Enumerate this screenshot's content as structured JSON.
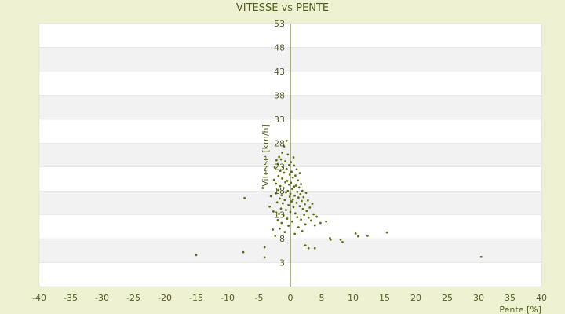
{
  "chart_data": {
    "type": "scatter",
    "title": "VITESSE vs PENTE",
    "xlabel": "Pente [%]",
    "ylabel": "Vitesse [km/h]",
    "xlim": [
      -40,
      40
    ],
    "ylim": [
      -2,
      53
    ],
    "x_ticks": [
      -40,
      -35,
      -30,
      -25,
      -20,
      -15,
      -10,
      -5,
      0,
      5,
      10,
      15,
      20,
      25,
      30,
      35,
      40
    ],
    "y_ticks": [
      3,
      8,
      13,
      18,
      23,
      28,
      33,
      38,
      43,
      48,
      53
    ],
    "grid": "horizontal bands",
    "marker_color": "#5e6e12",
    "points": [
      [
        -15,
        4.6
      ],
      [
        -7.5,
        5.2
      ],
      [
        -7.3,
        16.5
      ],
      [
        -4.4,
        18.6
      ],
      [
        -4.1,
        6.2
      ],
      [
        -4.1,
        4.1
      ],
      [
        -3.3,
        14.7
      ],
      [
        -3.1,
        16.9
      ],
      [
        -2.8,
        9.9
      ],
      [
        -2.7,
        13.7
      ],
      [
        -2.6,
        20.3
      ],
      [
        -2.5,
        22.9
      ],
      [
        -2.4,
        8.6
      ],
      [
        -2.3,
        19.5
      ],
      [
        -2.3,
        17.5
      ],
      [
        -2.2,
        24.4
      ],
      [
        -2.1,
        15.6
      ],
      [
        -2.0,
        23.6
      ],
      [
        -2.0,
        11.9
      ],
      [
        -1.9,
        21.1
      ],
      [
        -1.9,
        18.2
      ],
      [
        -1.8,
        13.2
      ],
      [
        -1.8,
        25.1
      ],
      [
        -1.7,
        10.1
      ],
      [
        -1.7,
        16.4
      ],
      [
        -1.6,
        22.2
      ],
      [
        -1.6,
        19.0
      ],
      [
        -1.5,
        14.3
      ],
      [
        -1.5,
        24.6
      ],
      [
        -1.4,
        17.1
      ],
      [
        -1.4,
        11.3
      ],
      [
        -1.3,
        20.6
      ],
      [
        -1.3,
        26.0
      ],
      [
        -1.2,
        15.4
      ],
      [
        -1.2,
        23.0
      ],
      [
        -1.1,
        18.6
      ],
      [
        -1.1,
        12.9
      ],
      [
        -1.0,
        21.8
      ],
      [
        -1.0,
        27.3
      ],
      [
        -0.9,
        16.1
      ],
      [
        -0.9,
        9.4
      ],
      [
        -0.8,
        19.8
      ],
      [
        -0.8,
        24.2
      ],
      [
        -0.7,
        14.0
      ],
      [
        -0.7,
        17.7
      ],
      [
        -0.6,
        22.6
      ],
      [
        -0.6,
        28.5
      ],
      [
        -0.5,
        12.2
      ],
      [
        -0.5,
        20.1
      ],
      [
        -0.4,
        18.0
      ],
      [
        -0.4,
        25.6
      ],
      [
        -0.3,
        15.0
      ],
      [
        -0.3,
        10.7
      ],
      [
        -0.2,
        23.4
      ],
      [
        -0.2,
        19.3
      ],
      [
        -0.1,
        16.8
      ],
      [
        -0.1,
        21.4
      ],
      [
        0.0,
        17.4
      ],
      [
        0.0,
        13.6
      ],
      [
        0.1,
        24.0
      ],
      [
        0.1,
        19.7
      ],
      [
        0.2,
        15.8
      ],
      [
        0.2,
        22.0
      ],
      [
        0.3,
        18.4
      ],
      [
        0.3,
        11.6
      ],
      [
        0.4,
        20.8
      ],
      [
        0.4,
        16.2
      ],
      [
        0.5,
        25.0
      ],
      [
        0.5,
        14.6
      ],
      [
        0.6,
        18.9
      ],
      [
        0.6,
        23.3
      ],
      [
        0.7,
        17.0
      ],
      [
        0.7,
        9.0
      ],
      [
        0.8,
        21.2
      ],
      [
        0.8,
        13.3
      ],
      [
        0.9,
        19.1
      ],
      [
        1.0,
        15.5
      ],
      [
        1.0,
        22.5
      ],
      [
        1.1,
        17.8
      ],
      [
        1.1,
        12.5
      ],
      [
        1.2,
        20.2
      ],
      [
        1.3,
        16.6
      ],
      [
        1.3,
        10.4
      ],
      [
        1.4,
        18.7
      ],
      [
        1.5,
        14.8
      ],
      [
        1.5,
        21.7
      ],
      [
        1.6,
        17.3
      ],
      [
        1.7,
        12.0
      ],
      [
        1.7,
        19.4
      ],
      [
        1.8,
        15.9
      ],
      [
        1.9,
        9.6
      ],
      [
        1.9,
        18.0
      ],
      [
        2.0,
        14.2
      ],
      [
        2.1,
        16.7
      ],
      [
        2.2,
        13.0
      ],
      [
        2.3,
        15.2
      ],
      [
        2.4,
        11.0
      ],
      [
        2.5,
        17.6
      ],
      [
        2.6,
        13.8
      ],
      [
        2.8,
        16.0
      ],
      [
        2.9,
        12.4
      ],
      [
        3.1,
        14.5
      ],
      [
        3.3,
        11.8
      ],
      [
        3.5,
        15.3
      ],
      [
        3.7,
        13.1
      ],
      [
        3.9,
        10.8
      ],
      [
        4.2,
        12.6
      ],
      [
        2.4,
        6.6
      ],
      [
        2.9,
        6.0
      ],
      [
        3.9,
        6.0
      ],
      [
        4.8,
        11.3
      ],
      [
        5.7,
        11.6
      ],
      [
        6.3,
        8.1
      ],
      [
        6.4,
        7.8
      ],
      [
        8.0,
        7.8
      ],
      [
        8.3,
        7.3
      ],
      [
        10.4,
        9.1
      ],
      [
        10.8,
        8.5
      ],
      [
        12.3,
        8.6
      ],
      [
        15.4,
        9.3
      ],
      [
        30.4,
        4.2
      ]
    ]
  }
}
